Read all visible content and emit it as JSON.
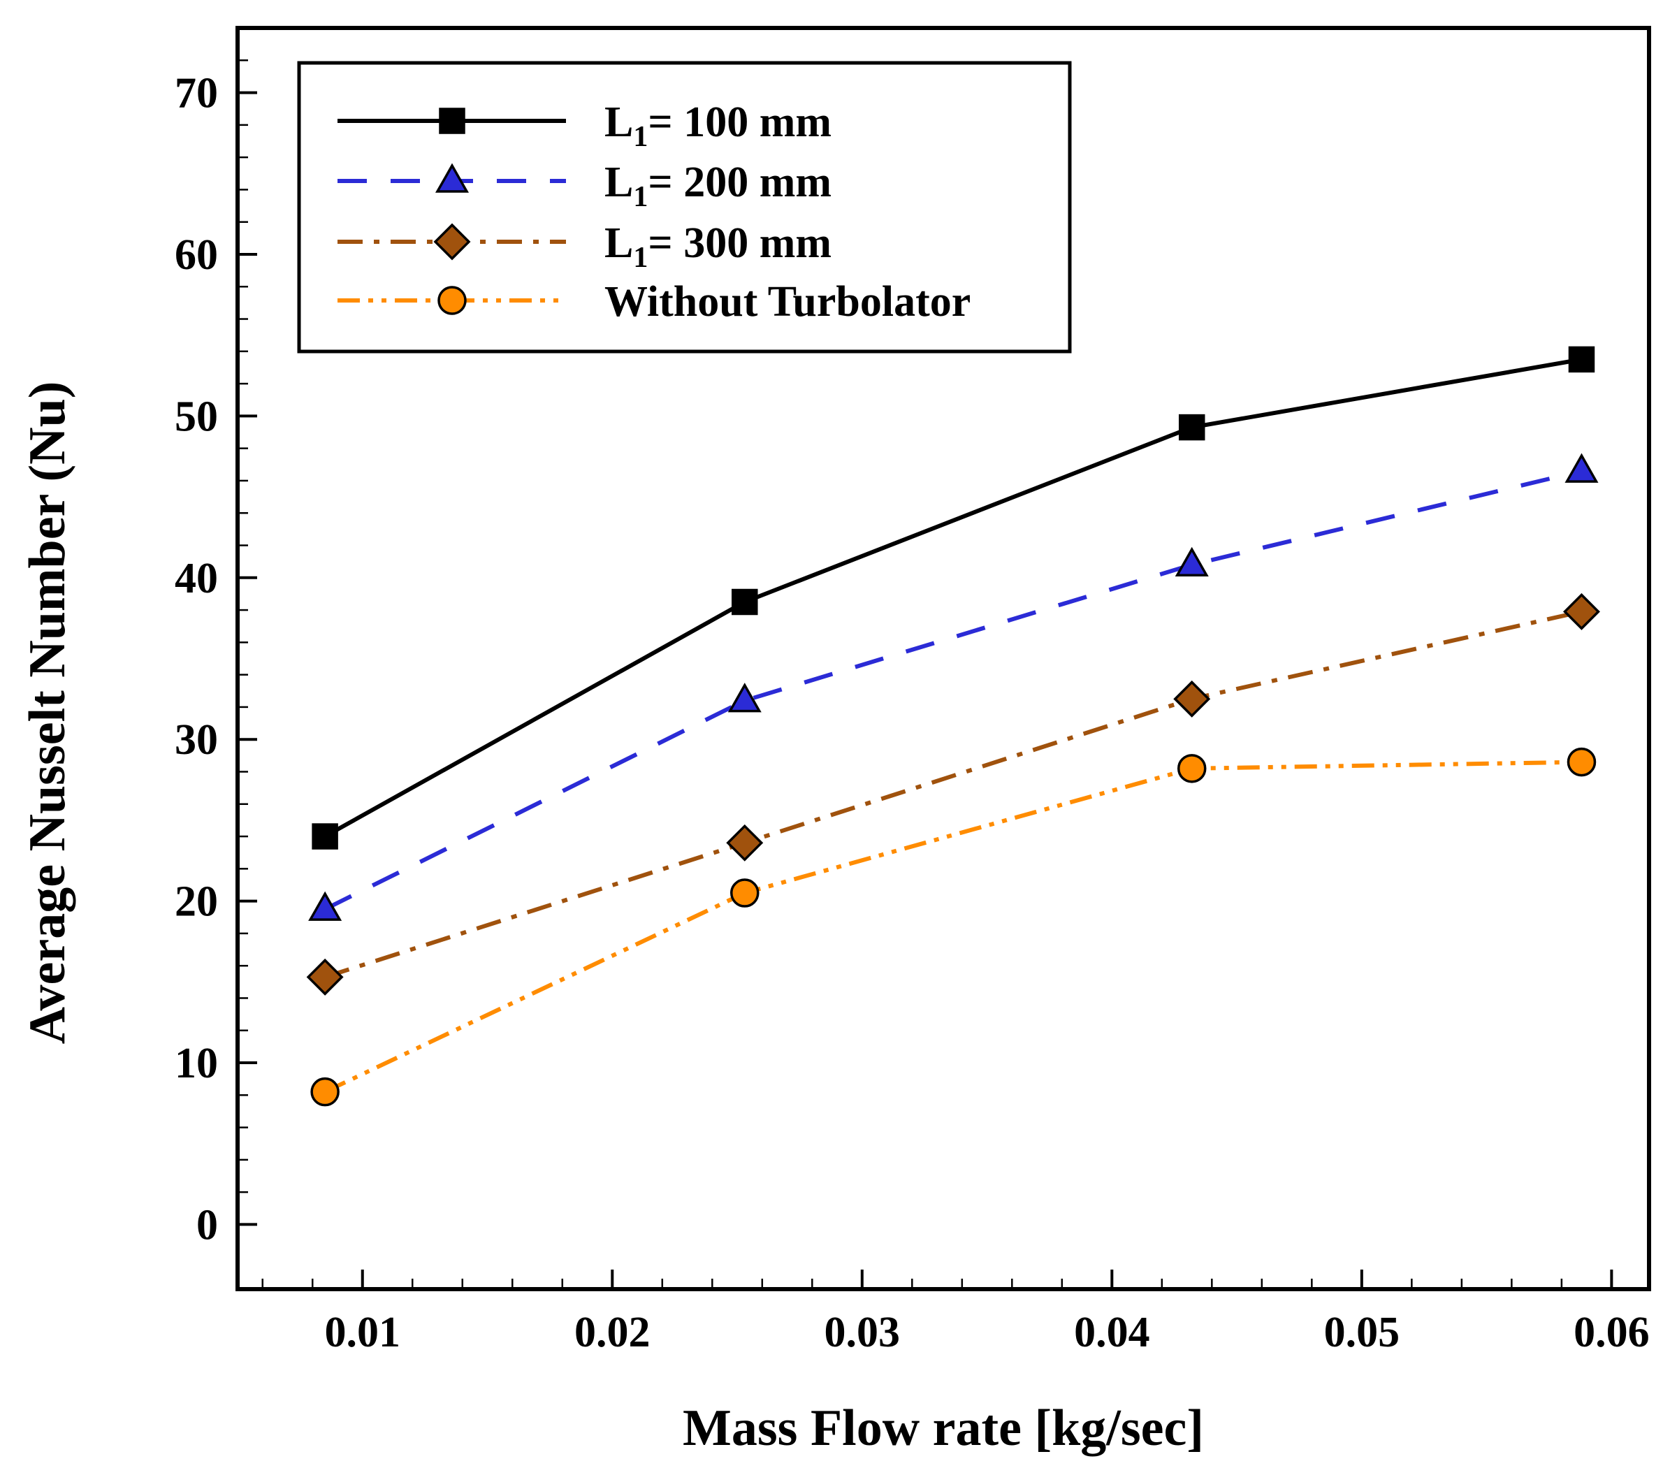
{
  "chart_data": {
    "type": "line",
    "title": "",
    "xlabel": "Mass Flow rate [kg/sec]",
    "ylabel": "Average Nusselt Number (Nu)",
    "xlim": [
      0.005,
      0.0615
    ],
    "ylim": [
      -4,
      74
    ],
    "x_ticks": [
      "0.01",
      "0.02",
      "0.03",
      "0.04",
      "0.05",
      "0.06"
    ],
    "y_ticks": [
      "0",
      "10",
      "20",
      "30",
      "40",
      "50",
      "60",
      "70"
    ],
    "x": [
      0.0085,
      0.0253,
      0.0432,
      0.0588
    ],
    "legend_position": "top-left",
    "series": [
      {
        "name": "L1= 100 mm",
        "legend_main": "L",
        "legend_sub": "1",
        "legend_rest": "= 100 mm",
        "values": [
          24.0,
          38.5,
          49.3,
          53.5
        ],
        "color": "#000000",
        "marker": "square",
        "line_style": "solid"
      },
      {
        "name": "L1= 200 mm",
        "legend_main": "L",
        "legend_sub": "1",
        "legend_rest": "= 200 mm",
        "values": [
          19.5,
          32.4,
          40.8,
          46.6
        ],
        "color": "#2b2bd6",
        "marker": "triangle",
        "line_style": "dash"
      },
      {
        "name": "L1= 300 mm",
        "legend_main": "L",
        "legend_sub": "1",
        "legend_rest": "= 300 mm",
        "values": [
          15.3,
          23.6,
          32.5,
          37.9
        ],
        "color": "#a0520d",
        "marker": "diamond",
        "line_style": "dashdot"
      },
      {
        "name": "Without Turbolator",
        "legend_main": "Without Turbolator",
        "legend_sub": "",
        "legend_rest": "",
        "values": [
          8.2,
          20.5,
          28.2,
          28.6
        ],
        "color": "#ff8c00",
        "marker": "circle",
        "line_style": "dashdotdot"
      }
    ]
  }
}
